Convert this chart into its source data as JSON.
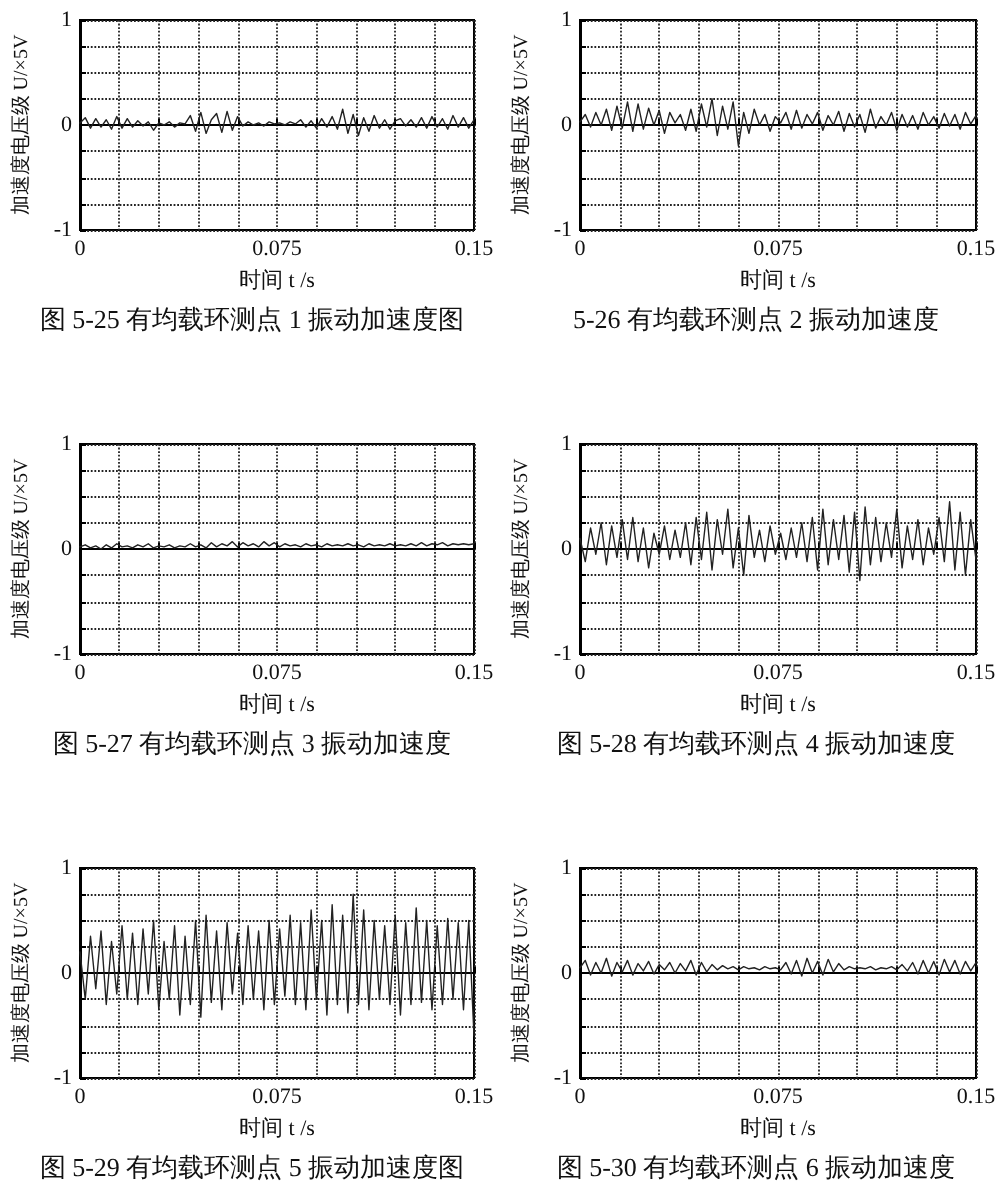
{
  "chart_data": [
    {
      "type": "line",
      "title": "图 5-25 有均载环测点 1 振动加速度图",
      "xlabel": "时间 t /s",
      "ylabel": "加速度电压级 U/×5V",
      "color": "#222222",
      "marker": "none",
      "line_style": "solid",
      "grid": true,
      "x": [
        0,
        0.002,
        0.004,
        0.006,
        0.008,
        0.01,
        0.012,
        0.014,
        0.016,
        0.018,
        0.02,
        0.022,
        0.024,
        0.026,
        0.028,
        0.03,
        0.032,
        0.034,
        0.036,
        0.038,
        0.04,
        0.042,
        0.044,
        0.046,
        0.048,
        0.05,
        0.052,
        0.054,
        0.056,
        0.058,
        0.06,
        0.062,
        0.064,
        0.066,
        0.068,
        0.07,
        0.072,
        0.074,
        0.076,
        0.078,
        0.08,
        0.082,
        0.084,
        0.086,
        0.088,
        0.09,
        0.092,
        0.094,
        0.096,
        0.098,
        0.1,
        0.102,
        0.104,
        0.106,
        0.108,
        0.11,
        0.112,
        0.114,
        0.116,
        0.118,
        0.12,
        0.122,
        0.124,
        0.126,
        0.128,
        0.13,
        0.132,
        0.134,
        0.136,
        0.138,
        0.14,
        0.142,
        0.144,
        0.146,
        0.148,
        0.15
      ],
      "values": [
        0.02,
        0.07,
        -0.03,
        0.06,
        -0.02,
        0.05,
        -0.04,
        0.08,
        -0.03,
        0.06,
        -0.02,
        0.04,
        -0.01,
        0.03,
        -0.05,
        0.02,
        0.0,
        0.03,
        -0.02,
        0.02,
        0.01,
        0.09,
        -0.06,
        0.12,
        -0.08,
        0.05,
        0.11,
        -0.07,
        0.13,
        -0.05,
        0.08,
        -0.01,
        0.03,
        0.0,
        0.02,
        -0.01,
        0.03,
        0.01,
        0.02,
        0.0,
        0.03,
        0.01,
        0.05,
        -0.02,
        0.04,
        -0.03,
        0.06,
        -0.02,
        0.08,
        -0.04,
        0.15,
        -0.08,
        0.1,
        -0.1,
        0.07,
        -0.06,
        0.09,
        -0.03,
        0.05,
        -0.04,
        0.04,
        0.06,
        -0.01,
        0.05,
        -0.02,
        0.07,
        -0.03,
        0.08,
        -0.02,
        0.06,
        -0.04,
        0.09,
        -0.02,
        0.07,
        -0.03,
        0.05
      ],
      "xlim": [
        0,
        0.15
      ],
      "ylim": [
        -1,
        1
      ],
      "xticks": [
        0,
        {
          "value": 0.015,
          "label": null
        },
        {
          "value": 0.03,
          "label": null
        },
        {
          "value": 0.045,
          "label": null
        },
        {
          "value": 0.06,
          "label": null
        },
        0.075,
        {
          "value": 0.09,
          "label": null
        },
        {
          "value": 0.105,
          "label": null
        },
        {
          "value": 0.12,
          "label": null
        },
        {
          "value": 0.135,
          "label": null
        },
        0.15
      ],
      "yticks": [
        -1,
        {
          "value": -0.75,
          "label": null
        },
        {
          "value": -0.5,
          "label": null
        },
        {
          "value": -0.25,
          "label": null
        },
        0,
        {
          "value": 0.25,
          "label": null
        },
        {
          "value": 0.5,
          "label": null
        },
        {
          "value": 0.75,
          "label": null
        },
        1
      ]
    },
    {
      "type": "line",
      "title": "5-26 有均载环测点 2 振动加速度",
      "xlabel": "时间 t /s",
      "ylabel": "加速度电压级 U/×5V",
      "color": "#222222",
      "marker": "none",
      "line_style": "solid",
      "grid": true,
      "x": [
        0,
        0.002,
        0.004,
        0.006,
        0.008,
        0.01,
        0.012,
        0.014,
        0.016,
        0.018,
        0.02,
        0.022,
        0.024,
        0.026,
        0.028,
        0.03,
        0.032,
        0.034,
        0.036,
        0.038,
        0.04,
        0.042,
        0.044,
        0.046,
        0.048,
        0.05,
        0.052,
        0.054,
        0.056,
        0.058,
        0.06,
        0.062,
        0.064,
        0.066,
        0.068,
        0.07,
        0.072,
        0.074,
        0.076,
        0.078,
        0.08,
        0.082,
        0.084,
        0.086,
        0.088,
        0.09,
        0.092,
        0.094,
        0.096,
        0.098,
        0.1,
        0.102,
        0.104,
        0.106,
        0.108,
        0.11,
        0.112,
        0.114,
        0.116,
        0.118,
        0.12,
        0.122,
        0.124,
        0.126,
        0.128,
        0.13,
        0.132,
        0.134,
        0.136,
        0.138,
        0.14,
        0.142,
        0.144,
        0.146,
        0.148,
        0.15
      ],
      "values": [
        0.03,
        0.1,
        -0.02,
        0.12,
        0.0,
        0.15,
        -0.05,
        0.18,
        -0.03,
        0.22,
        -0.06,
        0.2,
        -0.04,
        0.16,
        0.0,
        0.14,
        -0.08,
        0.12,
        0.02,
        0.1,
        -0.05,
        0.15,
        -0.06,
        0.2,
        -0.02,
        0.25,
        -0.1,
        0.18,
        -0.04,
        0.22,
        -0.2,
        0.12,
        -0.08,
        0.15,
        0.0,
        0.1,
        -0.06,
        0.08,
        0.02,
        0.12,
        -0.04,
        0.14,
        -0.03,
        0.1,
        0.01,
        0.12,
        -0.05,
        0.09,
        0.0,
        0.13,
        -0.06,
        0.11,
        -0.02,
        0.1,
        -0.07,
        0.15,
        -0.03,
        0.08,
        0.0,
        0.12,
        -0.05,
        0.1,
        -0.02,
        0.09,
        -0.04,
        0.12,
        0.0,
        0.08,
        -0.03,
        0.11,
        -0.01,
        0.1,
        -0.04,
        0.12,
        0.01,
        0.09
      ],
      "xlim": [
        0,
        0.15
      ],
      "ylim": [
        -1,
        1
      ],
      "xticks": [
        0,
        {
          "value": 0.015,
          "label": null
        },
        {
          "value": 0.03,
          "label": null
        },
        {
          "value": 0.045,
          "label": null
        },
        {
          "value": 0.06,
          "label": null
        },
        0.075,
        {
          "value": 0.09,
          "label": null
        },
        {
          "value": 0.105,
          "label": null
        },
        {
          "value": 0.12,
          "label": null
        },
        {
          "value": 0.135,
          "label": null
        },
        0.15
      ],
      "yticks": [
        -1,
        {
          "value": -0.75,
          "label": null
        },
        {
          "value": -0.5,
          "label": null
        },
        {
          "value": -0.25,
          "label": null
        },
        0,
        {
          "value": 0.25,
          "label": null
        },
        {
          "value": 0.5,
          "label": null
        },
        {
          "value": 0.75,
          "label": null
        },
        1
      ]
    },
    {
      "type": "line",
      "title": "图 5-27 有均载环测点 3 振动加速度",
      "xlabel": "时间 t /s",
      "ylabel": "加速度电压级 U/×5V",
      "color": "#222222",
      "marker": "none",
      "line_style": "solid",
      "grid": true,
      "x": [
        0,
        0.002,
        0.004,
        0.006,
        0.008,
        0.01,
        0.012,
        0.014,
        0.016,
        0.018,
        0.02,
        0.022,
        0.024,
        0.026,
        0.028,
        0.03,
        0.032,
        0.034,
        0.036,
        0.038,
        0.04,
        0.042,
        0.044,
        0.046,
        0.048,
        0.05,
        0.052,
        0.054,
        0.056,
        0.058,
        0.06,
        0.062,
        0.064,
        0.066,
        0.068,
        0.07,
        0.072,
        0.074,
        0.076,
        0.078,
        0.08,
        0.082,
        0.084,
        0.086,
        0.088,
        0.09,
        0.092,
        0.094,
        0.096,
        0.098,
        0.1,
        0.102,
        0.104,
        0.106,
        0.108,
        0.11,
        0.112,
        0.114,
        0.116,
        0.118,
        0.12,
        0.122,
        0.124,
        0.126,
        0.128,
        0.13,
        0.132,
        0.134,
        0.136,
        0.138,
        0.14,
        0.142,
        0.144,
        0.146,
        0.148,
        0.15
      ],
      "values": [
        0.02,
        0.04,
        0.01,
        0.03,
        0.0,
        0.04,
        0.01,
        0.05,
        0.02,
        0.03,
        0.01,
        0.04,
        0.02,
        0.05,
        0.01,
        0.03,
        0.02,
        0.04,
        0.01,
        0.03,
        0.02,
        0.05,
        0.02,
        0.04,
        0.01,
        0.06,
        0.02,
        0.05,
        0.03,
        0.07,
        0.02,
        0.06,
        0.03,
        0.05,
        0.02,
        0.07,
        0.03,
        0.06,
        0.02,
        0.05,
        0.03,
        0.04,
        0.02,
        0.05,
        0.03,
        0.04,
        0.02,
        0.05,
        0.03,
        0.04,
        0.03,
        0.05,
        0.03,
        0.04,
        0.02,
        0.05,
        0.03,
        0.04,
        0.03,
        0.05,
        0.03,
        0.04,
        0.03,
        0.05,
        0.03,
        0.06,
        0.03,
        0.05,
        0.04,
        0.06,
        0.03,
        0.05,
        0.04,
        0.05,
        0.04,
        0.05
      ],
      "xlim": [
        0,
        0.15
      ],
      "ylim": [
        -1,
        1
      ],
      "xticks": [
        0,
        {
          "value": 0.015,
          "label": null
        },
        {
          "value": 0.03,
          "label": null
        },
        {
          "value": 0.045,
          "label": null
        },
        {
          "value": 0.06,
          "label": null
        },
        0.075,
        {
          "value": 0.09,
          "label": null
        },
        {
          "value": 0.105,
          "label": null
        },
        {
          "value": 0.12,
          "label": null
        },
        {
          "value": 0.135,
          "label": null
        },
        0.15
      ],
      "yticks": [
        -1,
        {
          "value": -0.75,
          "label": null
        },
        {
          "value": -0.5,
          "label": null
        },
        {
          "value": -0.25,
          "label": null
        },
        0,
        {
          "value": 0.25,
          "label": null
        },
        {
          "value": 0.5,
          "label": null
        },
        {
          "value": 0.75,
          "label": null
        },
        1
      ]
    },
    {
      "type": "line",
      "title": "图 5-28 有均载环测点 4 振动加速度",
      "xlabel": "时间 t /s",
      "ylabel": "加速度电压级 U/×5V",
      "color": "#222222",
      "marker": "none",
      "line_style": "solid",
      "grid": true,
      "x": [
        0,
        0.002,
        0.004,
        0.006,
        0.008,
        0.01,
        0.012,
        0.014,
        0.016,
        0.018,
        0.02,
        0.022,
        0.024,
        0.026,
        0.028,
        0.03,
        0.032,
        0.034,
        0.036,
        0.038,
        0.04,
        0.042,
        0.044,
        0.046,
        0.048,
        0.05,
        0.052,
        0.054,
        0.056,
        0.058,
        0.06,
        0.062,
        0.064,
        0.066,
        0.068,
        0.07,
        0.072,
        0.074,
        0.076,
        0.078,
        0.08,
        0.082,
        0.084,
        0.086,
        0.088,
        0.09,
        0.092,
        0.094,
        0.096,
        0.098,
        0.1,
        0.102,
        0.104,
        0.106,
        0.108,
        0.11,
        0.112,
        0.114,
        0.116,
        0.118,
        0.12,
        0.122,
        0.124,
        0.126,
        0.128,
        0.13,
        0.132,
        0.134,
        0.136,
        0.138,
        0.14,
        0.142,
        0.144,
        0.146,
        0.148,
        0.15
      ],
      "values": [
        0.1,
        -0.12,
        0.2,
        -0.05,
        0.25,
        -0.15,
        0.22,
        -0.08,
        0.28,
        -0.1,
        0.3,
        -0.12,
        0.2,
        -0.18,
        0.15,
        -0.05,
        0.22,
        -0.1,
        0.18,
        -0.08,
        0.25,
        -0.15,
        0.3,
        -0.1,
        0.35,
        -0.2,
        0.28,
        -0.05,
        0.38,
        -0.18,
        0.2,
        -0.25,
        0.32,
        -0.08,
        0.18,
        -0.12,
        0.22,
        -0.05,
        0.15,
        -0.1,
        0.2,
        -0.08,
        0.25,
        -0.12,
        0.3,
        -0.2,
        0.38,
        -0.15,
        0.28,
        -0.1,
        0.32,
        -0.22,
        0.35,
        -0.3,
        0.4,
        -0.15,
        0.3,
        -0.12,
        0.25,
        -0.08,
        0.38,
        -0.18,
        0.22,
        -0.1,
        0.28,
        -0.15,
        0.2,
        -0.05,
        0.3,
        -0.12,
        0.45,
        -0.2,
        0.35,
        -0.25,
        0.28,
        -0.1
      ],
      "xlim": [
        0,
        0.15
      ],
      "ylim": [
        -1,
        1
      ],
      "xticks": [
        0,
        {
          "value": 0.015,
          "label": null
        },
        {
          "value": 0.03,
          "label": null
        },
        {
          "value": 0.045,
          "label": null
        },
        {
          "value": 0.06,
          "label": null
        },
        0.075,
        {
          "value": 0.09,
          "label": null
        },
        {
          "value": 0.105,
          "label": null
        },
        {
          "value": 0.12,
          "label": null
        },
        {
          "value": 0.135,
          "label": null
        },
        0.15
      ],
      "yticks": [
        -1,
        {
          "value": -0.75,
          "label": null
        },
        {
          "value": -0.5,
          "label": null
        },
        {
          "value": -0.25,
          "label": null
        },
        0,
        {
          "value": 0.25,
          "label": null
        },
        {
          "value": 0.5,
          "label": null
        },
        {
          "value": 0.75,
          "label": null
        },
        1
      ]
    },
    {
      "type": "line",
      "title": "图 5-29 有均载环测点 5 振动加速度图",
      "xlabel": "时间 t /s",
      "ylabel": "加速度电压级 U/×5V",
      "color": "#222222",
      "marker": "none",
      "line_style": "solid",
      "grid": true,
      "x": [
        0,
        0.002,
        0.004,
        0.006,
        0.008,
        0.01,
        0.012,
        0.014,
        0.016,
        0.018,
        0.02,
        0.022,
        0.024,
        0.026,
        0.028,
        0.03,
        0.032,
        0.034,
        0.036,
        0.038,
        0.04,
        0.042,
        0.044,
        0.046,
        0.048,
        0.05,
        0.052,
        0.054,
        0.056,
        0.058,
        0.06,
        0.062,
        0.064,
        0.066,
        0.068,
        0.07,
        0.072,
        0.074,
        0.076,
        0.078,
        0.08,
        0.082,
        0.084,
        0.086,
        0.088,
        0.09,
        0.092,
        0.094,
        0.096,
        0.098,
        0.1,
        0.102,
        0.104,
        0.106,
        0.108,
        0.11,
        0.112,
        0.114,
        0.116,
        0.118,
        0.12,
        0.122,
        0.124,
        0.126,
        0.128,
        0.13,
        0.132,
        0.134,
        0.136,
        0.138,
        0.14,
        0.142,
        0.144,
        0.146,
        0.148,
        0.15
      ],
      "values": [
        0.2,
        -0.25,
        0.35,
        -0.15,
        0.4,
        -0.3,
        0.3,
        -0.2,
        0.45,
        -0.25,
        0.38,
        -0.3,
        0.42,
        -0.2,
        0.5,
        -0.35,
        0.3,
        -0.25,
        0.45,
        -0.4,
        0.35,
        -0.3,
        0.5,
        -0.42,
        0.55,
        -0.28,
        0.4,
        -0.35,
        0.48,
        -0.2,
        0.38,
        -0.3,
        0.45,
        -0.25,
        0.4,
        -0.35,
        0.5,
        -0.3,
        0.42,
        -0.22,
        0.55,
        -0.3,
        0.48,
        -0.35,
        0.6,
        -0.25,
        0.5,
        -0.4,
        0.65,
        -0.3,
        0.55,
        -0.38,
        0.75,
        -0.3,
        0.6,
        -0.35,
        0.5,
        -0.25,
        0.45,
        -0.3,
        0.55,
        -0.4,
        0.48,
        -0.3,
        0.62,
        -0.28,
        0.5,
        -0.35,
        0.45,
        -0.3,
        0.52,
        -0.25,
        0.48,
        -0.35,
        0.5,
        -0.6
      ],
      "xlim": [
        0,
        0.15
      ],
      "ylim": [
        -1,
        1
      ],
      "xticks": [
        0,
        {
          "value": 0.015,
          "label": null
        },
        {
          "value": 0.03,
          "label": null
        },
        {
          "value": 0.045,
          "label": null
        },
        {
          "value": 0.06,
          "label": null
        },
        0.075,
        {
          "value": 0.09,
          "label": null
        },
        {
          "value": 0.105,
          "label": null
        },
        {
          "value": 0.12,
          "label": null
        },
        {
          "value": 0.135,
          "label": null
        },
        0.15
      ],
      "yticks": [
        -1,
        {
          "value": -0.75,
          "label": null
        },
        {
          "value": -0.5,
          "label": null
        },
        {
          "value": -0.25,
          "label": null
        },
        0,
        {
          "value": 0.25,
          "label": null
        },
        {
          "value": 0.5,
          "label": null
        },
        {
          "value": 0.75,
          "label": null
        },
        1
      ]
    },
    {
      "type": "line",
      "title": "图 5-30 有均载环测点 6 振动加速度",
      "xlabel": "时间 t /s",
      "ylabel": "加速度电压级 U/×5V",
      "color": "#222222",
      "marker": "none",
      "line_style": "solid",
      "grid": true,
      "x": [
        0,
        0.002,
        0.004,
        0.006,
        0.008,
        0.01,
        0.012,
        0.014,
        0.016,
        0.018,
        0.02,
        0.022,
        0.024,
        0.026,
        0.028,
        0.03,
        0.032,
        0.034,
        0.036,
        0.038,
        0.04,
        0.042,
        0.044,
        0.046,
        0.048,
        0.05,
        0.052,
        0.054,
        0.056,
        0.058,
        0.06,
        0.062,
        0.064,
        0.066,
        0.068,
        0.07,
        0.072,
        0.074,
        0.076,
        0.078,
        0.08,
        0.082,
        0.084,
        0.086,
        0.088,
        0.09,
        0.092,
        0.094,
        0.096,
        0.098,
        0.1,
        0.102,
        0.104,
        0.106,
        0.108,
        0.11,
        0.112,
        0.114,
        0.116,
        0.118,
        0.12,
        0.122,
        0.124,
        0.126,
        0.128,
        0.13,
        0.132,
        0.134,
        0.136,
        0.138,
        0.14,
        0.142,
        0.144,
        0.146,
        0.148,
        0.15
      ],
      "values": [
        0.05,
        0.12,
        -0.02,
        0.1,
        0.0,
        0.14,
        -0.03,
        0.1,
        0.01,
        0.12,
        -0.02,
        0.09,
        0.02,
        0.11,
        -0.01,
        0.08,
        0.03,
        0.1,
        0.0,
        0.09,
        0.02,
        0.12,
        -0.02,
        0.1,
        0.01,
        0.08,
        0.03,
        0.07,
        0.04,
        0.06,
        0.03,
        0.06,
        0.04,
        0.05,
        0.03,
        0.06,
        0.04,
        0.05,
        0.03,
        0.1,
        -0.01,
        0.12,
        -0.03,
        0.14,
        0.0,
        0.11,
        -0.02,
        0.13,
        0.01,
        0.09,
        0.03,
        0.06,
        0.04,
        0.05,
        0.04,
        0.06,
        0.03,
        0.05,
        0.04,
        0.06,
        0.03,
        0.08,
        0.02,
        0.1,
        -0.01,
        0.12,
        0.0,
        0.11,
        -0.02,
        0.13,
        0.01,
        0.12,
        -0.01,
        0.11,
        0.02,
        0.1
      ],
      "xlim": [
        0,
        0.15
      ],
      "ylim": [
        -1,
        1
      ],
      "xticks": [
        0,
        {
          "value": 0.015,
          "label": null
        },
        {
          "value": 0.03,
          "label": null
        },
        {
          "value": 0.045,
          "label": null
        },
        {
          "value": 0.06,
          "label": null
        },
        0.075,
        {
          "value": 0.09,
          "label": null
        },
        {
          "value": 0.105,
          "label": null
        },
        {
          "value": 0.12,
          "label": null
        },
        {
          "value": 0.135,
          "label": null
        },
        0.15
      ],
      "yticks": [
        -1,
        {
          "value": -0.75,
          "label": null
        },
        {
          "value": -0.5,
          "label": null
        },
        {
          "value": -0.25,
          "label": null
        },
        0,
        {
          "value": 0.25,
          "label": null
        },
        {
          "value": 0.5,
          "label": null
        },
        {
          "value": 0.75,
          "label": null
        },
        1
      ]
    }
  ]
}
